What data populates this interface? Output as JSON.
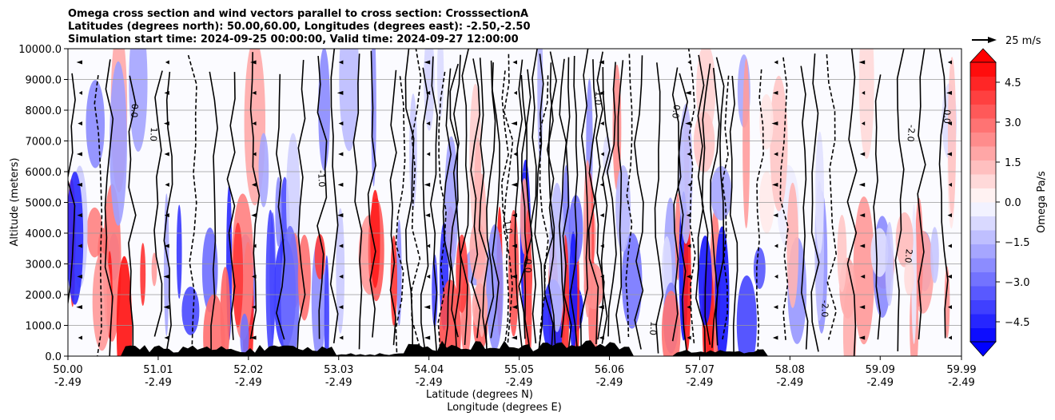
{
  "chart_data": {
    "type": "contourf",
    "title_lines": [
      "Omega cross section and wind vectors parallel to cross section: CrosssectionA",
      "Latitudes (degrees north): 50.00,60.00, Longitudes (degrees east): -2.50,-2.50",
      "Simulation start time: 2024-09-25 00:00:00, Valid time: 2024-09-27 12:00:00"
    ],
    "ylabel": "Altitude (meters)",
    "xlabel_lat": "Latitude (degrees N)",
    "xlabel_lon": "Longitude (degrees E)",
    "ylim": [
      0,
      10000
    ],
    "y_ticks": [
      "0.0",
      "1000.0",
      "2000.0",
      "3000.0",
      "4000.0",
      "5000.0",
      "6000.0",
      "7000.0",
      "8000.0",
      "9000.0",
      "10000.0"
    ],
    "x_ticks": [
      {
        "lat": "50.00",
        "lon": "-2.49",
        "frac": 0.0
      },
      {
        "lat": "51.01",
        "lon": "-2.49",
        "frac": 0.101
      },
      {
        "lat": "52.02",
        "lon": "-2.49",
        "frac": 0.202
      },
      {
        "lat": "53.03",
        "lon": "-2.49",
        "frac": 0.303
      },
      {
        "lat": "54.04",
        "lon": "-2.49",
        "frac": 0.404
      },
      {
        "lat": "55.05",
        "lon": "-2.49",
        "frac": 0.505
      },
      {
        "lat": "56.06",
        "lon": "-2.49",
        "frac": 0.606
      },
      {
        "lat": "57.07",
        "lon": "-2.49",
        "frac": 0.707
      },
      {
        "lat": "58.08",
        "lon": "-2.49",
        "frac": 0.808
      },
      {
        "lat": "59.09",
        "lon": "-2.49",
        "frac": 0.909
      },
      {
        "lat": "59.99",
        "lon": "-2.49",
        "frac": 1.0
      }
    ],
    "colorbar": {
      "label": "Omega Pa/s",
      "range": [
        -5.25,
        5.25
      ],
      "ticks": [
        "−4.5",
        "−3.0",
        "−1.5",
        "0.0",
        "1.5",
        "3.0",
        "4.5"
      ],
      "tick_values": [
        -4.5,
        -3.0,
        -1.5,
        0.0,
        1.5,
        3.0,
        4.5
      ],
      "levels": 20
    },
    "quiver_key": {
      "label": "25 m/s"
    },
    "contour_labels": [
      "0.0",
      "1.0",
      "-1.0",
      "2.0",
      "-2.0",
      "1.0",
      "-1.0",
      "0.0",
      "-2.0",
      "0.0",
      "1.0",
      "0.0"
    ]
  },
  "colors": {
    "positive": "#ff0000",
    "negative": "#0000ff",
    "terrain": "#000000"
  }
}
